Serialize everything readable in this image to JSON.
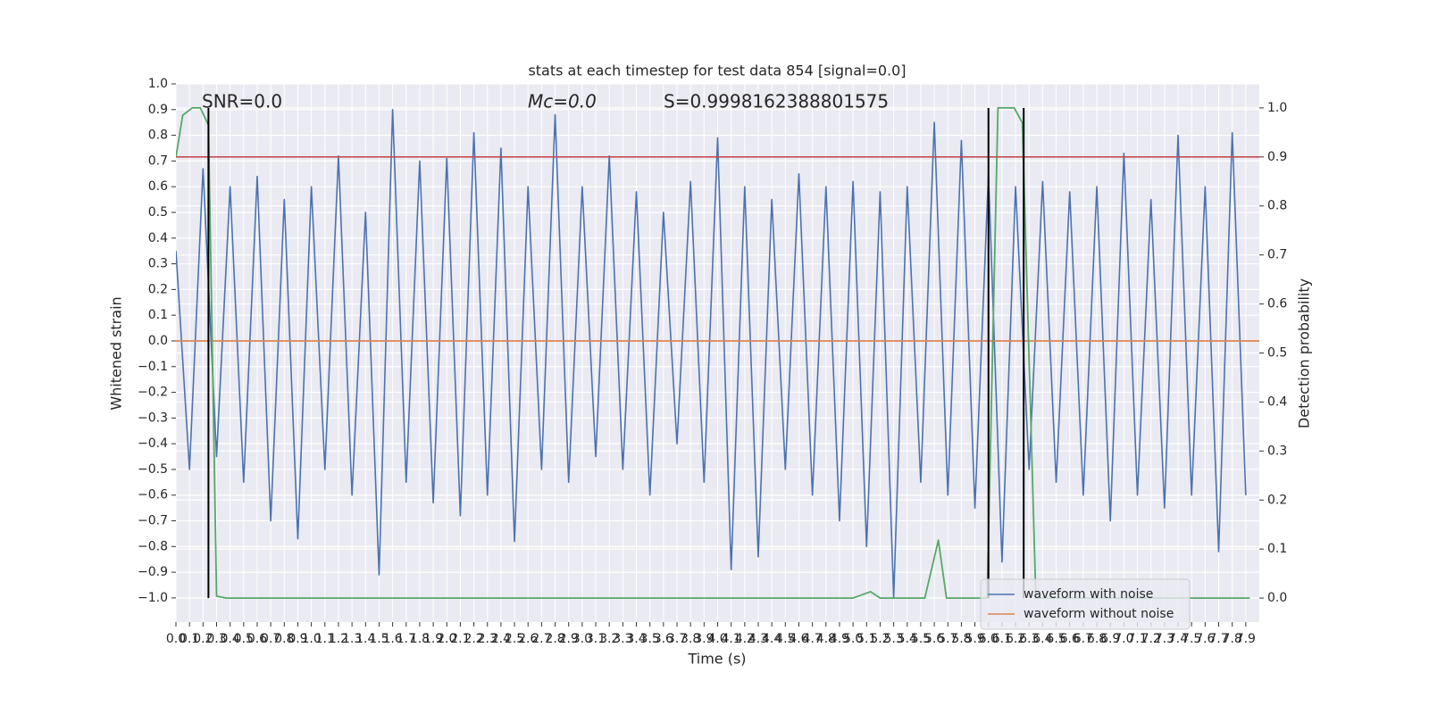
{
  "chart_data": {
    "type": "line",
    "title": "stats at each timestep for test data 854 [signal=0.0]",
    "annotations": [
      "SNR=0.0",
      "Mc=0.0",
      "S=0.9998162388801575"
    ],
    "xlabel": "Time (s)",
    "ylabel": "Whitened strain",
    "y2label": "Detection probability",
    "xlim": [
      0,
      8.0
    ],
    "ylim": [
      -1.094,
      1.0
    ],
    "y2lim": [
      -0.049,
      1.049
    ],
    "xticks": [
      {
        "value": 0,
        "label": "0.0"
      },
      0.1,
      0.2,
      0.3,
      0.4,
      0.5,
      0.6,
      0.7,
      0.8,
      0.9,
      {
        "value": 1,
        "label": "1.0"
      },
      1.1,
      1.2,
      1.3,
      1.4,
      1.5,
      1.6,
      1.7,
      1.8,
      1.9,
      {
        "value": 2,
        "label": "2.0"
      },
      2.1,
      2.2,
      2.3,
      2.4,
      2.5,
      2.6,
      2.7,
      2.8,
      2.9,
      {
        "value": 3,
        "label": "3.0"
      },
      3.1,
      3.2,
      3.3,
      3.4,
      3.5,
      3.6,
      3.7,
      3.8,
      3.9,
      {
        "value": 4,
        "label": "4.0"
      },
      4.1,
      4.2,
      4.3,
      4.4,
      4.5,
      4.6,
      4.7,
      4.8,
      4.9,
      {
        "value": 5,
        "label": "5.0"
      },
      5.1,
      5.2,
      5.3,
      5.4,
      5.5,
      5.6,
      5.7,
      5.8,
      5.9,
      {
        "value": 6,
        "label": "6.0"
      },
      6.1,
      6.2,
      6.3,
      6.4,
      6.5,
      6.6,
      6.7,
      6.8,
      6.9,
      {
        "value": 7,
        "label": "7.0"
      },
      7.1,
      7.2,
      7.3,
      7.4,
      7.5,
      7.6,
      7.7,
      7.8,
      7.9
    ],
    "yticks": [
      {
        "value": -1.0,
        "label": "−1.0"
      },
      {
        "value": -0.9,
        "label": "−0.9"
      },
      {
        "value": -0.8,
        "label": "−0.8"
      },
      {
        "value": -0.7,
        "label": "−0.7"
      },
      {
        "value": -0.6,
        "label": "−0.6"
      },
      {
        "value": -0.5,
        "label": "−0.5"
      },
      {
        "value": -0.4,
        "label": "−0.4"
      },
      {
        "value": -0.3,
        "label": "−0.3"
      },
      {
        "value": -0.2,
        "label": "−0.2"
      },
      {
        "value": -0.1,
        "label": "−0.1"
      },
      {
        "value": 0,
        "label": "0.0"
      },
      0.1,
      0.2,
      0.3,
      0.4,
      0.5,
      0.6,
      0.7,
      0.8,
      0.9,
      {
        "value": 1,
        "label": "1.0"
      }
    ],
    "y2ticks": [
      {
        "value": 0,
        "label": "0.0"
      },
      0.1,
      0.2,
      0.3,
      0.4,
      0.5,
      0.6,
      0.7,
      0.8,
      0.9,
      {
        "value": 1,
        "label": "1.0"
      }
    ],
    "grid": true,
    "threshold": 0.9,
    "threshold_color": "#c44e52",
    "vlines": [
      0.24,
      6.0,
      6.26
    ],
    "vline_color": "#000000",
    "legend": "lower right",
    "series": [
      {
        "name": "waveform with noise",
        "color": "#4c72b0",
        "x": [
          0,
          0.1,
          0.2,
          0.3,
          0.4,
          0.5,
          0.6,
          0.7,
          0.8,
          0.9,
          1.0,
          1.1,
          1.2,
          1.3,
          1.4,
          1.5,
          1.6,
          1.7,
          1.8,
          1.9,
          2.0,
          2.1,
          2.2,
          2.3,
          2.4,
          2.5,
          2.6,
          2.7,
          2.8,
          2.9,
          3.0,
          3.1,
          3.2,
          3.3,
          3.4,
          3.5,
          3.6,
          3.7,
          3.8,
          3.9,
          4.0,
          4.1,
          4.2,
          4.3,
          4.4,
          4.5,
          4.6,
          4.7,
          4.8,
          4.9,
          5.0,
          5.1,
          5.2,
          5.3,
          5.4,
          5.5,
          5.6,
          5.7,
          5.8,
          5.9,
          6.0,
          6.1,
          6.2,
          6.3,
          6.4,
          6.5,
          6.6,
          6.7,
          6.8,
          6.9,
          7.0,
          7.1,
          7.2,
          7.3,
          7.4,
          7.5,
          7.6,
          7.7,
          7.8,
          7.9
        ],
        "values": [
          0.35,
          -0.5,
          0.67,
          -0.45,
          0.6,
          -0.55,
          0.64,
          -0.7,
          0.55,
          -0.77,
          0.6,
          -0.5,
          0.72,
          -0.6,
          0.5,
          -0.91,
          0.9,
          -0.55,
          0.7,
          -0.63,
          0.71,
          -0.68,
          0.81,
          -0.6,
          0.75,
          -0.78,
          0.6,
          -0.5,
          0.88,
          -0.55,
          0.6,
          -0.45,
          0.72,
          -0.5,
          0.58,
          -0.6,
          0.5,
          -0.4,
          0.62,
          -0.55,
          0.79,
          -0.89,
          0.6,
          -0.84,
          0.55,
          -0.5,
          0.65,
          -0.6,
          0.6,
          -0.7,
          0.62,
          -0.8,
          0.58,
          -1.0,
          0.6,
          -0.55,
          0.85,
          -0.6,
          0.78,
          -0.65,
          0.65,
          -0.86,
          0.6,
          -0.5,
          0.62,
          -0.55,
          0.58,
          -0.6,
          0.6,
          -0.7,
          0.73,
          -0.6,
          0.55,
          -0.65,
          0.8,
          -0.6,
          0.6,
          -0.82,
          0.81,
          -0.6
        ]
      },
      {
        "name": "waveform without noise",
        "color": "#dd8452",
        "x": [
          0,
          8.0
        ],
        "values": [
          0,
          0
        ]
      },
      {
        "color": "#55a868",
        "axis": "y2",
        "x": [
          0,
          0.05,
          0.12,
          0.18,
          0.24,
          0.3,
          0.37,
          5.0,
          5.13,
          5.2,
          5.53,
          5.63,
          5.69,
          5.99,
          6.07,
          6.19,
          6.25,
          6.35,
          7.93
        ],
        "values": [
          0.9,
          0.985,
          1.0,
          1.0,
          0.965,
          0.004,
          0,
          0,
          0.013,
          0,
          0,
          0.118,
          0,
          0,
          1.0,
          1.0,
          0.97,
          0,
          0
        ]
      }
    ]
  }
}
